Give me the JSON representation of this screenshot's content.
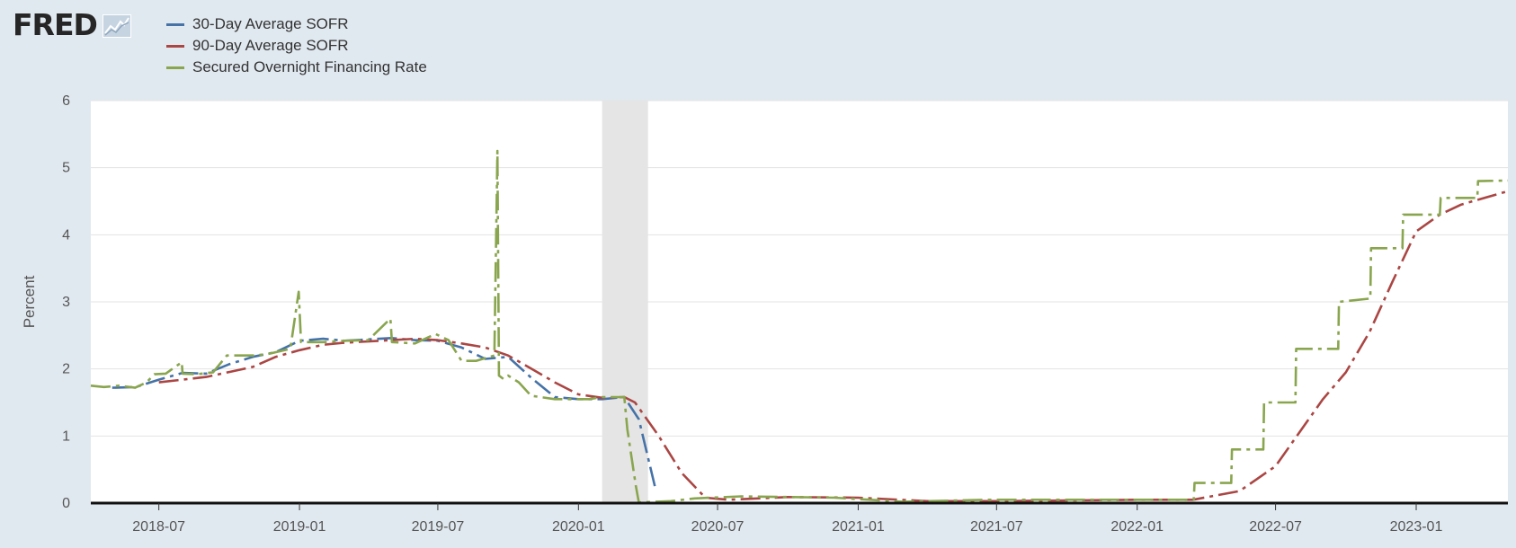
{
  "logo": {
    "text": "FRED",
    "icon": "line-chart-icon"
  },
  "chart_data": {
    "type": "line",
    "title": "",
    "xlabel": "",
    "ylabel": "Percent",
    "xlim": [
      "2018-04-03",
      "2023-05-01"
    ],
    "ylim": [
      0,
      6
    ],
    "yticks": [
      0,
      1,
      2,
      3,
      4,
      5,
      6
    ],
    "xticks": [
      "2018-07",
      "2019-01",
      "2019-07",
      "2020-01",
      "2020-07",
      "2021-01",
      "2021-07",
      "2022-01",
      "2022-07",
      "2023-01"
    ],
    "grid": true,
    "legend_position": "top-left",
    "recession_shading": [
      "2020-02-01",
      "2020-04-01"
    ],
    "series": [
      {
        "name": "30-Day Average SOFR",
        "color": "#4572a7",
        "points": [
          [
            "2018-05-01",
            1.72
          ],
          [
            "2018-06-01",
            1.73
          ],
          [
            "2018-07-01",
            1.84
          ],
          [
            "2018-08-01",
            1.94
          ],
          [
            "2018-09-01",
            1.93
          ],
          [
            "2018-10-01",
            2.07
          ],
          [
            "2018-11-01",
            2.18
          ],
          [
            "2018-12-01",
            2.25
          ],
          [
            "2019-01-01",
            2.42
          ],
          [
            "2019-02-01",
            2.45
          ],
          [
            "2019-03-01",
            2.42
          ],
          [
            "2019-04-01",
            2.44
          ],
          [
            "2019-05-01",
            2.46
          ],
          [
            "2019-06-01",
            2.43
          ],
          [
            "2019-07-01",
            2.42
          ],
          [
            "2019-08-01",
            2.32
          ],
          [
            "2019-09-01",
            2.15
          ],
          [
            "2019-10-01",
            2.18
          ],
          [
            "2019-11-01",
            1.86
          ],
          [
            "2019-12-01",
            1.58
          ],
          [
            "2020-01-01",
            1.55
          ],
          [
            "2020-02-01",
            1.55
          ],
          [
            "2020-03-01",
            1.58
          ],
          [
            "2020-03-20",
            1.25
          ],
          [
            "2020-04-10",
            0.25
          ]
        ]
      },
      {
        "name": "90-Day Average SOFR",
        "color": "#aa4643",
        "points": [
          [
            "2018-07-01",
            1.8
          ],
          [
            "2018-09-01",
            1.88
          ],
          [
            "2018-11-01",
            2.03
          ],
          [
            "2018-12-01",
            2.18
          ],
          [
            "2019-01-01",
            2.28
          ],
          [
            "2019-02-01",
            2.36
          ],
          [
            "2019-03-01",
            2.39
          ],
          [
            "2019-05-01",
            2.43
          ],
          [
            "2019-06-01",
            2.45
          ],
          [
            "2019-07-01",
            2.43
          ],
          [
            "2019-08-01",
            2.38
          ],
          [
            "2019-09-01",
            2.32
          ],
          [
            "2019-10-01",
            2.2
          ],
          [
            "2019-11-01",
            2.0
          ],
          [
            "2019-12-01",
            1.8
          ],
          [
            "2020-01-01",
            1.62
          ],
          [
            "2020-02-01",
            1.57
          ],
          [
            "2020-03-01",
            1.58
          ],
          [
            "2020-03-15",
            1.5
          ],
          [
            "2020-04-15",
            1.0
          ],
          [
            "2020-05-15",
            0.45
          ],
          [
            "2020-06-15",
            0.08
          ],
          [
            "2020-07-15",
            0.05
          ],
          [
            "2020-10-01",
            0.09
          ],
          [
            "2021-01-01",
            0.08
          ],
          [
            "2021-04-01",
            0.03
          ],
          [
            "2021-07-01",
            0.03
          ],
          [
            "2022-01-01",
            0.05
          ],
          [
            "2022-03-15",
            0.05
          ],
          [
            "2022-05-15",
            0.18
          ],
          [
            "2022-07-01",
            0.55
          ],
          [
            "2022-08-01",
            1.05
          ],
          [
            "2022-09-01",
            1.55
          ],
          [
            "2022-10-01",
            1.95
          ],
          [
            "2022-11-01",
            2.55
          ],
          [
            "2022-12-01",
            3.3
          ],
          [
            "2023-01-01",
            4.05
          ],
          [
            "2023-02-01",
            4.3
          ],
          [
            "2023-03-01",
            4.45
          ],
          [
            "2023-05-01",
            4.65
          ]
        ]
      },
      {
        "name": "Secured Overnight Financing Rate",
        "color": "#89a54e",
        "points": [
          [
            "2018-04-03",
            1.75
          ],
          [
            "2018-04-20",
            1.73
          ],
          [
            "2018-05-10",
            1.75
          ],
          [
            "2018-05-31",
            1.72
          ],
          [
            "2018-06-15",
            1.8
          ],
          [
            "2018-06-25",
            1.92
          ],
          [
            "2018-07-10",
            1.93
          ],
          [
            "2018-07-31",
            2.1
          ],
          [
            "2018-08-01",
            1.93
          ],
          [
            "2018-08-20",
            1.92
          ],
          [
            "2018-09-10",
            1.95
          ],
          [
            "2018-09-28",
            2.2
          ],
          [
            "2018-10-15",
            2.2
          ],
          [
            "2018-11-01",
            2.2
          ],
          [
            "2018-11-20",
            2.22
          ],
          [
            "2018-12-20",
            2.3
          ],
          [
            "2018-12-31",
            3.15
          ],
          [
            "2019-01-03",
            2.4
          ],
          [
            "2019-02-01",
            2.4
          ],
          [
            "2019-03-01",
            2.42
          ],
          [
            "2019-04-01",
            2.43
          ],
          [
            "2019-04-30",
            2.75
          ],
          [
            "2019-05-02",
            2.4
          ],
          [
            "2019-06-01",
            2.38
          ],
          [
            "2019-06-28",
            2.52
          ],
          [
            "2019-07-15",
            2.43
          ],
          [
            "2019-08-01",
            2.12
          ],
          [
            "2019-08-20",
            2.12
          ],
          [
            "2019-09-13",
            2.2
          ],
          [
            "2019-09-17",
            5.25
          ],
          [
            "2019-09-19",
            1.9
          ],
          [
            "2019-09-25",
            1.85
          ],
          [
            "2019-10-01",
            1.9
          ],
          [
            "2019-10-15",
            1.8
          ],
          [
            "2019-10-31",
            1.6
          ],
          [
            "2019-12-01",
            1.55
          ],
          [
            "2019-12-31",
            1.55
          ],
          [
            "2020-01-15",
            1.55
          ],
          [
            "2020-02-01",
            1.58
          ],
          [
            "2020-03-01",
            1.58
          ],
          [
            "2020-03-05",
            1.1
          ],
          [
            "2020-03-16",
            0.26
          ],
          [
            "2020-03-20",
            0.01
          ],
          [
            "2020-05-01",
            0.03
          ],
          [
            "2020-06-01",
            0.07
          ],
          [
            "2020-08-01",
            0.1
          ],
          [
            "2020-12-01",
            0.08
          ],
          [
            "2021-03-01",
            0.02
          ],
          [
            "2021-06-17",
            0.05
          ],
          [
            "2022-03-16",
            0.05
          ],
          [
            "2022-03-17",
            0.3
          ],
          [
            "2022-05-04",
            0.3
          ],
          [
            "2022-05-05",
            0.8
          ],
          [
            "2022-06-15",
            0.8
          ],
          [
            "2022-06-16",
            1.5
          ],
          [
            "2022-07-27",
            1.5
          ],
          [
            "2022-07-28",
            2.3
          ],
          [
            "2022-09-21",
            2.3
          ],
          [
            "2022-09-22",
            3.0
          ],
          [
            "2022-11-02",
            3.05
          ],
          [
            "2022-11-03",
            3.8
          ],
          [
            "2022-12-14",
            3.8
          ],
          [
            "2022-12-15",
            4.3
          ],
          [
            "2023-02-01",
            4.3
          ],
          [
            "2023-02-02",
            4.55
          ],
          [
            "2023-03-22",
            4.55
          ],
          [
            "2023-03-23",
            4.8
          ],
          [
            "2023-05-01",
            4.81
          ]
        ]
      }
    ]
  }
}
